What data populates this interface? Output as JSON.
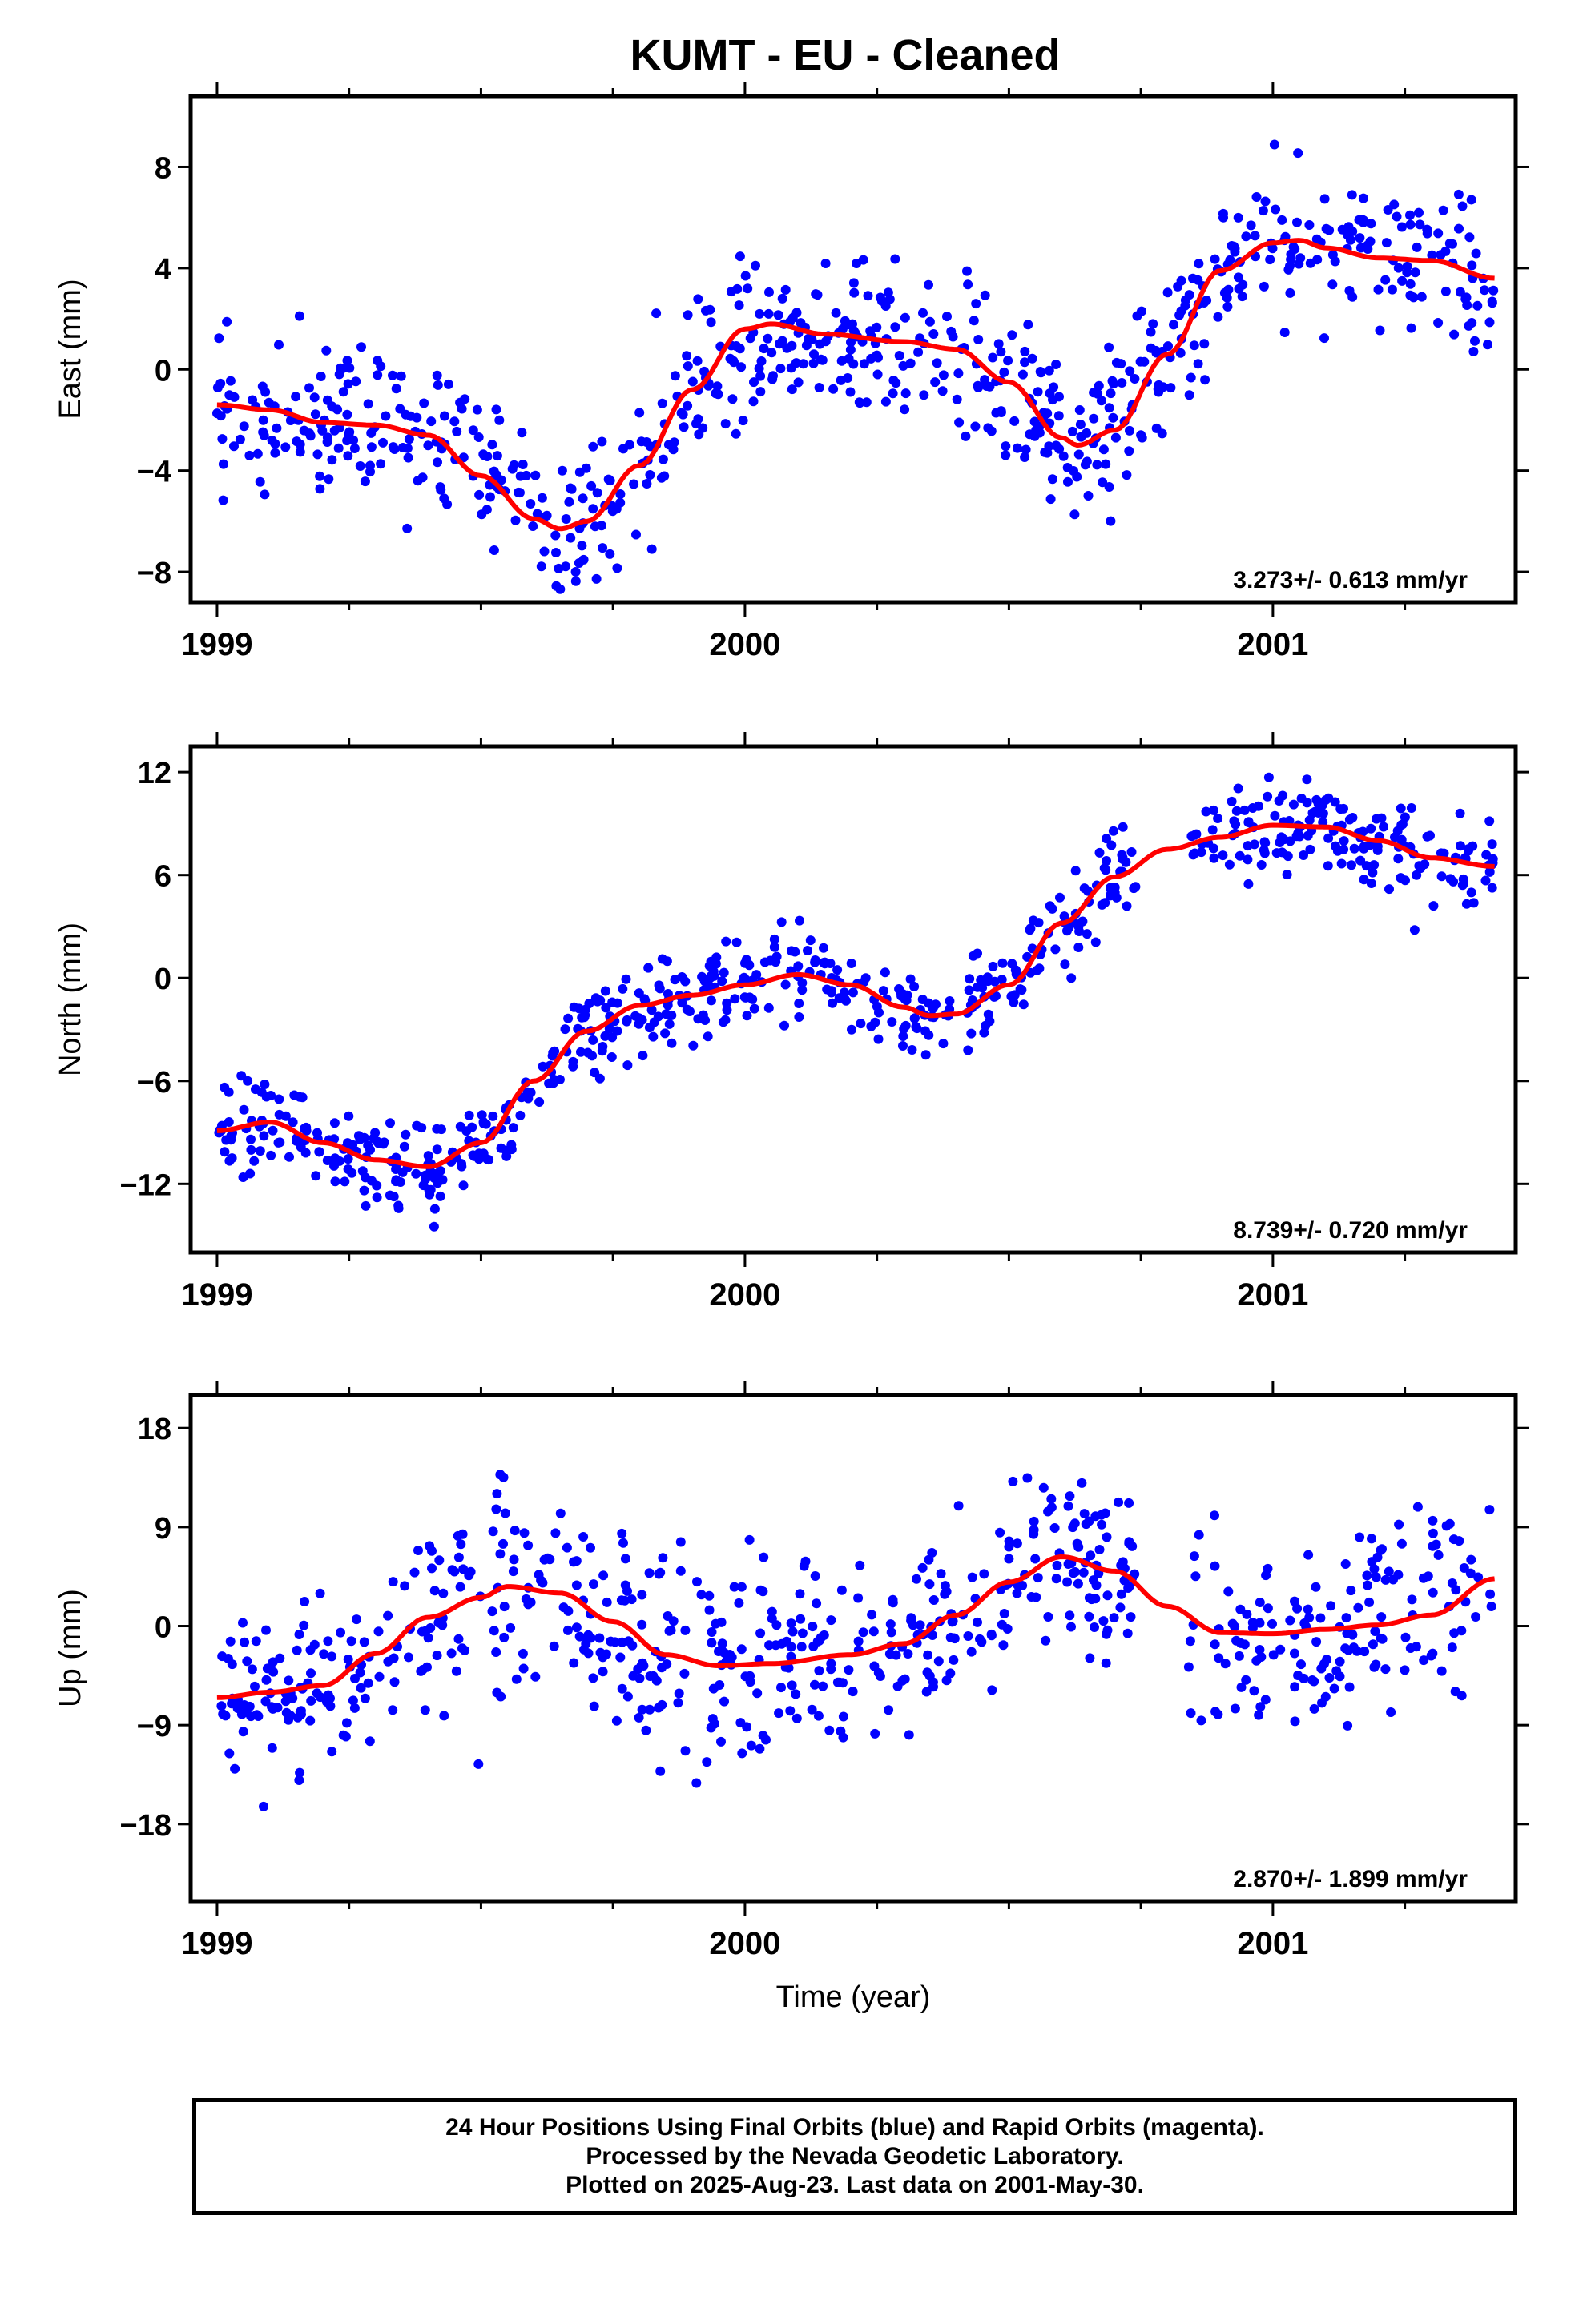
{
  "title": "KUMT  - EU - Cleaned",
  "footer": {
    "line1": "24 Hour Positions Using Final Orbits (blue) and Rapid Orbits (magenta).",
    "line2": "Processed by the Nevada Geodetic Laboratory.",
    "line3": "Plotted on 2025-Aug-23. Last data on 2001-May-30."
  },
  "colors": {
    "points": "#0000ff",
    "fit": "#ff0000",
    "axes": "#000000"
  },
  "chart_data": [
    {
      "type": "scatter",
      "ylabel": "East (mm)",
      "xlabel": "",
      "xlim": [
        1998.95,
        2001.46
      ],
      "ylim": [
        -9.2,
        10.8
      ],
      "xticks": [
        1999,
        2000,
        2001
      ],
      "yticks": [
        -8,
        -4,
        0,
        4,
        8
      ],
      "rate_label": "3.273+/- 0.613 mm/yr",
      "data_range": [
        1999.0,
        2001.42
      ],
      "gaps": [],
      "noise": 1.5,
      "fit": [
        [
          1999.0,
          -1.4
        ],
        [
          1999.1,
          -1.6
        ],
        [
          1999.2,
          -2.1
        ],
        [
          1999.3,
          -2.2
        ],
        [
          1999.4,
          -2.6
        ],
        [
          1999.5,
          -4.2
        ],
        [
          1999.6,
          -5.9
        ],
        [
          1999.65,
          -6.3
        ],
        [
          1999.7,
          -6.0
        ],
        [
          1999.8,
          -3.8
        ],
        [
          1999.9,
          -0.8
        ],
        [
          2000.0,
          1.6
        ],
        [
          2000.05,
          1.8
        ],
        [
          2000.15,
          1.4
        ],
        [
          2000.3,
          1.1
        ],
        [
          2000.4,
          0.8
        ],
        [
          2000.5,
          -0.5
        ],
        [
          2000.6,
          -2.7
        ],
        [
          2000.63,
          -3.0
        ],
        [
          2000.7,
          -2.4
        ],
        [
          2000.8,
          0.6
        ],
        [
          2000.9,
          3.9
        ],
        [
          2001.0,
          5.0
        ],
        [
          2001.05,
          5.1
        ],
        [
          2001.1,
          4.8
        ],
        [
          2001.2,
          4.4
        ],
        [
          2001.3,
          4.3
        ],
        [
          2001.42,
          3.6
        ]
      ]
    },
    {
      "type": "scatter",
      "ylabel": "North (mm)",
      "xlabel": "",
      "xlim": [
        1998.95,
        2001.46
      ],
      "ylim": [
        -16.0,
        13.5
      ],
      "xticks": [
        1999,
        2000,
        2001
      ],
      "yticks": [
        -12,
        -6,
        0,
        6,
        12
      ],
      "rate_label": "8.739+/- 0.720 mm/yr",
      "data_range": [
        1999.0,
        2001.42
      ],
      "gaps": [
        [
          2000.74,
          2000.84
        ]
      ],
      "noise": 1.3,
      "fit": [
        [
          1999.0,
          -8.9
        ],
        [
          1999.1,
          -8.4
        ],
        [
          1999.2,
          -9.6
        ],
        [
          1999.3,
          -10.6
        ],
        [
          1999.4,
          -11.0
        ],
        [
          1999.5,
          -9.6
        ],
        [
          1999.6,
          -6.0
        ],
        [
          1999.7,
          -3.1
        ],
        [
          1999.8,
          -1.6
        ],
        [
          1999.9,
          -1.0
        ],
        [
          2000.0,
          -0.4
        ],
        [
          2000.1,
          0.2
        ],
        [
          2000.2,
          -0.4
        ],
        [
          2000.3,
          -1.7
        ],
        [
          2000.35,
          -2.2
        ],
        [
          2000.4,
          -2.1
        ],
        [
          2000.5,
          -0.4
        ],
        [
          2000.6,
          3.2
        ],
        [
          2000.7,
          5.9
        ],
        [
          2000.8,
          7.5
        ],
        [
          2000.9,
          8.2
        ],
        [
          2001.0,
          8.9
        ],
        [
          2001.1,
          8.8
        ],
        [
          2001.2,
          8.0
        ],
        [
          2001.3,
          7.0
        ],
        [
          2001.42,
          6.5
        ]
      ]
    },
    {
      "type": "scatter",
      "ylabel": "Up (mm)",
      "xlabel": "Time (year)",
      "xlim": [
        1998.95,
        2001.46
      ],
      "ylim": [
        -25.0,
        21.0
      ],
      "xticks": [
        1999,
        2000,
        2001
      ],
      "yticks": [
        -18,
        -9,
        0,
        9,
        18
      ],
      "rate_label": "2.870+/- 1.899 mm/yr",
      "data_range": [
        1999.0,
        2001.42
      ],
      "gaps": [
        [
          2000.74,
          2000.84
        ]
      ],
      "noise": 4.2,
      "fit": [
        [
          1999.0,
          -6.5
        ],
        [
          1999.1,
          -6.0
        ],
        [
          1999.2,
          -5.4
        ],
        [
          1999.3,
          -2.5
        ],
        [
          1999.4,
          0.8
        ],
        [
          1999.5,
          2.6
        ],
        [
          1999.55,
          3.6
        ],
        [
          1999.65,
          3.0
        ],
        [
          1999.75,
          0.4
        ],
        [
          1999.85,
          -2.6
        ],
        [
          1999.95,
          -3.6
        ],
        [
          2000.05,
          -3.4
        ],
        [
          2000.2,
          -2.6
        ],
        [
          2000.3,
          -1.6
        ],
        [
          2000.4,
          1.0
        ],
        [
          2000.5,
          4.0
        ],
        [
          2000.6,
          6.3
        ],
        [
          2000.7,
          5.0
        ],
        [
          2000.8,
          1.8
        ],
        [
          2000.9,
          -0.6
        ],
        [
          2001.0,
          -0.7
        ],
        [
          2001.1,
          -0.3
        ],
        [
          2001.2,
          0.1
        ],
        [
          2001.3,
          1.0
        ],
        [
          2001.42,
          4.3
        ]
      ]
    }
  ]
}
